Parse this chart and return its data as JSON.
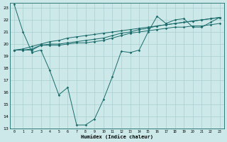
{
  "xlabel": "Humidex (Indice chaleur)",
  "bg_color": "#cce8e8",
  "grid_color": "#aacfcf",
  "line_color": "#1a6b6b",
  "xlim": [
    -0.5,
    23.5
  ],
  "ylim": [
    13,
    23.4
  ],
  "xticks": [
    0,
    1,
    2,
    3,
    4,
    5,
    6,
    7,
    8,
    9,
    10,
    11,
    12,
    13,
    14,
    15,
    16,
    17,
    18,
    19,
    20,
    21,
    22,
    23
  ],
  "yticks": [
    13,
    14,
    15,
    16,
    17,
    18,
    19,
    20,
    21,
    22,
    23
  ],
  "series": [
    [
      23.3,
      21.0,
      19.3,
      19.5,
      17.8,
      15.8,
      16.4,
      13.3,
      13.3,
      13.8,
      15.4,
      17.3,
      19.4,
      19.3,
      19.5,
      21.0,
      22.3,
      21.7,
      22.0,
      22.1,
      21.4,
      21.4,
      21.8,
      22.2
    ],
    [
      19.5,
      19.5,
      19.5,
      19.9,
      19.9,
      19.9,
      20.0,
      20.1,
      20.1,
      20.2,
      20.3,
      20.5,
      20.7,
      20.9,
      21.0,
      21.1,
      21.2,
      21.3,
      21.4,
      21.4,
      21.5,
      21.5,
      21.6,
      21.7
    ],
    [
      19.5,
      19.5,
      19.6,
      19.9,
      20.0,
      20.0,
      20.1,
      20.2,
      20.3,
      20.4,
      20.5,
      20.7,
      20.9,
      21.0,
      21.2,
      21.3,
      21.5,
      21.6,
      21.7,
      21.8,
      21.9,
      22.0,
      22.1,
      22.2
    ],
    [
      19.5,
      19.6,
      19.8,
      20.0,
      20.2,
      20.3,
      20.5,
      20.6,
      20.7,
      20.8,
      20.9,
      21.0,
      21.1,
      21.2,
      21.3,
      21.4,
      21.5,
      21.6,
      21.7,
      21.8,
      21.9,
      22.0,
      22.1,
      22.2
    ]
  ]
}
